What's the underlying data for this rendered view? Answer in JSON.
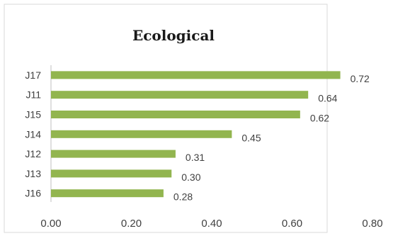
{
  "chart_data": {
    "type": "bar",
    "orientation": "horizontal",
    "title": "Ecological",
    "categories": [
      "J17",
      "J11",
      "J15",
      "J14",
      "J12",
      "J13",
      "J16"
    ],
    "values": [
      0.72,
      0.64,
      0.62,
      0.45,
      0.31,
      0.3,
      0.28
    ],
    "value_labels": [
      "0.72",
      "0.64",
      "0.62",
      "0.45",
      "0.31",
      "0.30",
      "0.28"
    ],
    "x_ticks": [
      "0.00",
      "0.20",
      "0.40",
      "0.60",
      "0.80"
    ],
    "xlim": [
      0,
      0.8
    ],
    "xlabel": "",
    "ylabel": "",
    "grid": false,
    "legend": "none",
    "bar_color": "#92b54f"
  }
}
